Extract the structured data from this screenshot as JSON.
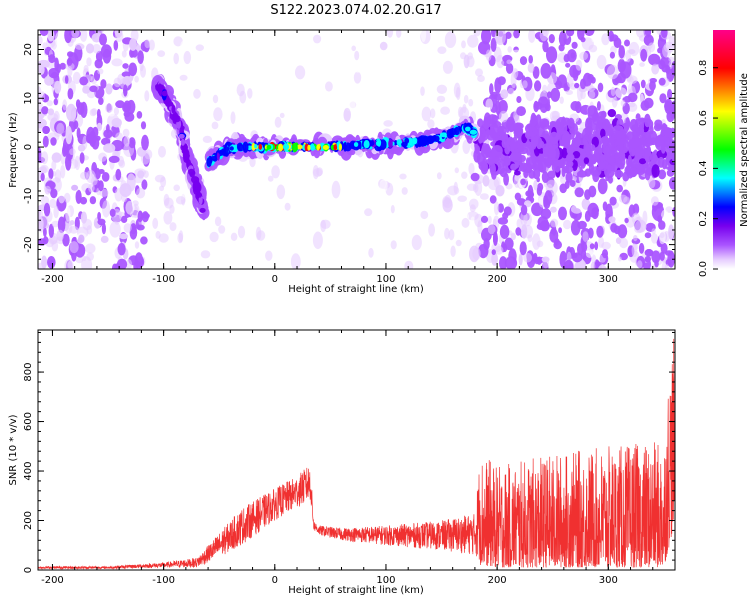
{
  "title": "S122.2023.074.02.20.G17",
  "chart_data": [
    {
      "type": "heatmap",
      "xlabel": "Height of straight line (km)",
      "ylabel": "Frequency (Hz)",
      "xlim": [
        -213,
        360
      ],
      "ylim": [
        -25,
        24
      ],
      "x_ticks": [
        -200,
        -100,
        0,
        100,
        200,
        300
      ],
      "y_ticks": [
        -20,
        -10,
        0,
        10,
        20
      ],
      "colorbar": {
        "label": "Normalized spectral amplitude",
        "range": [
          0.0,
          0.95
        ],
        "ticks": [
          "0.0",
          "0.2",
          "0.4",
          "0.6",
          "0.8"
        ],
        "colors": [
          "#ffffff",
          "#e6ccff",
          "#aa55ff",
          "#7700ee",
          "#0000ff",
          "#00ffff",
          "#00ff00",
          "#ffff00",
          "#ff0000",
          "#ff0088"
        ]
      },
      "ridge": {
        "descending_branch": [
          [
            -105,
            13
          ],
          [
            -95,
            9
          ],
          [
            -85,
            4
          ],
          [
            -78,
            -3
          ],
          [
            -70,
            -8
          ],
          [
            -65,
            -13
          ]
        ],
        "main_line": [
          [
            -60,
            -3
          ],
          [
            -40,
            0
          ],
          [
            -20,
            0
          ],
          [
            0,
            0
          ],
          [
            40,
            0
          ],
          [
            80,
            0.5
          ],
          [
            100,
            0.7
          ],
          [
            130,
            1
          ],
          [
            150,
            2
          ],
          [
            170,
            4
          ],
          [
            180,
            3
          ]
        ],
        "peak_segment": [
          [
            -20,
            0
          ],
          [
            60,
            0
          ]
        ]
      }
    },
    {
      "type": "line",
      "xlabel": "Height of straight line (km)",
      "ylabel": "SNR (10 * v/v)",
      "xlim": [
        -213,
        360
      ],
      "ylim": [
        0,
        970
      ],
      "x_ticks": [
        -200,
        -100,
        0,
        100,
        200,
        300
      ],
      "y_ticks": [
        0,
        200,
        400,
        600,
        800
      ],
      "series": [
        {
          "color": "#f03030",
          "envelope": [
            [
              -213,
              5,
              15
            ],
            [
              -150,
              5,
              15
            ],
            [
              -100,
              10,
              30
            ],
            [
              -70,
              10,
              50
            ],
            [
              -50,
              50,
              150
            ],
            [
              -30,
              100,
              250
            ],
            [
              0,
              200,
              330
            ],
            [
              20,
              250,
              380
            ],
            [
              32,
              280,
              430
            ],
            [
              35,
              160,
              200
            ],
            [
              40,
              140,
              180
            ],
            [
              60,
              120,
              170
            ],
            [
              100,
              100,
              180
            ],
            [
              150,
              80,
              200
            ],
            [
              180,
              60,
              230
            ],
            [
              185,
              20,
              480
            ],
            [
              200,
              10,
              420
            ],
            [
              250,
              10,
              470
            ],
            [
              300,
              10,
              500
            ],
            [
              350,
              10,
              520
            ],
            [
              355,
              100,
              850
            ],
            [
              360,
              200,
              960
            ]
          ]
        }
      ]
    }
  ]
}
